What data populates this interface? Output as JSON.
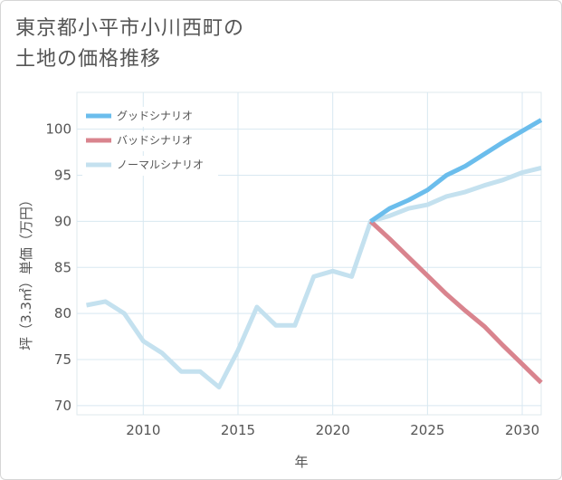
{
  "title": {
    "line1": "東京都小平市小川西町の",
    "line2": "土地の価格推移"
  },
  "colors": {
    "good": "#6bbdec",
    "bad": "#d9848e",
    "normal": "#c4e1ef",
    "grid": "#d8e8f1"
  },
  "chart_data": {
    "type": "line",
    "title": "東京都小平市小川西町の土地の価格推移",
    "xlabel": "年",
    "ylabel": "坪（3.3㎡）単価（万円）",
    "xlim": [
      2006.5,
      2031
    ],
    "ylim": [
      69,
      104
    ],
    "xticks": [
      2010,
      2015,
      2020,
      2025,
      2030
    ],
    "yticks": [
      70,
      75,
      80,
      85,
      90,
      95,
      100
    ],
    "legend_position": "top-left",
    "series": [
      {
        "key": "good",
        "name": "グッドシナリオ",
        "x": [
          2022,
          2023,
          2024,
          2025,
          2026,
          2027,
          2028,
          2029,
          2030,
          2031
        ],
        "y": [
          90.0,
          91.4,
          92.3,
          93.4,
          95.0,
          96.0,
          97.3,
          98.6,
          99.8,
          101.0
        ]
      },
      {
        "key": "bad",
        "name": "バッドシナリオ",
        "x": [
          2022,
          2023,
          2024,
          2025,
          2026,
          2027,
          2028,
          2029,
          2030,
          2031
        ],
        "y": [
          90.0,
          88.1,
          86.1,
          84.1,
          82.1,
          80.3,
          78.6,
          76.5,
          74.5,
          72.5
        ]
      },
      {
        "key": "normal",
        "name": "ノーマルシナリオ",
        "x": [
          2007,
          2008,
          2009,
          2010,
          2011,
          2012,
          2013,
          2014,
          2015,
          2016,
          2017,
          2018,
          2019,
          2020,
          2021,
          2022,
          2023,
          2024,
          2025,
          2026,
          2027,
          2028,
          2029,
          2030,
          2031
        ],
        "y": [
          80.9,
          81.3,
          80.0,
          77.0,
          75.7,
          73.7,
          73.7,
          72.0,
          76.0,
          80.7,
          78.7,
          78.7,
          84.0,
          84.6,
          84.0,
          90.0,
          90.6,
          91.4,
          91.8,
          92.7,
          93.2,
          93.9,
          94.5,
          95.3,
          95.8
        ]
      }
    ]
  }
}
